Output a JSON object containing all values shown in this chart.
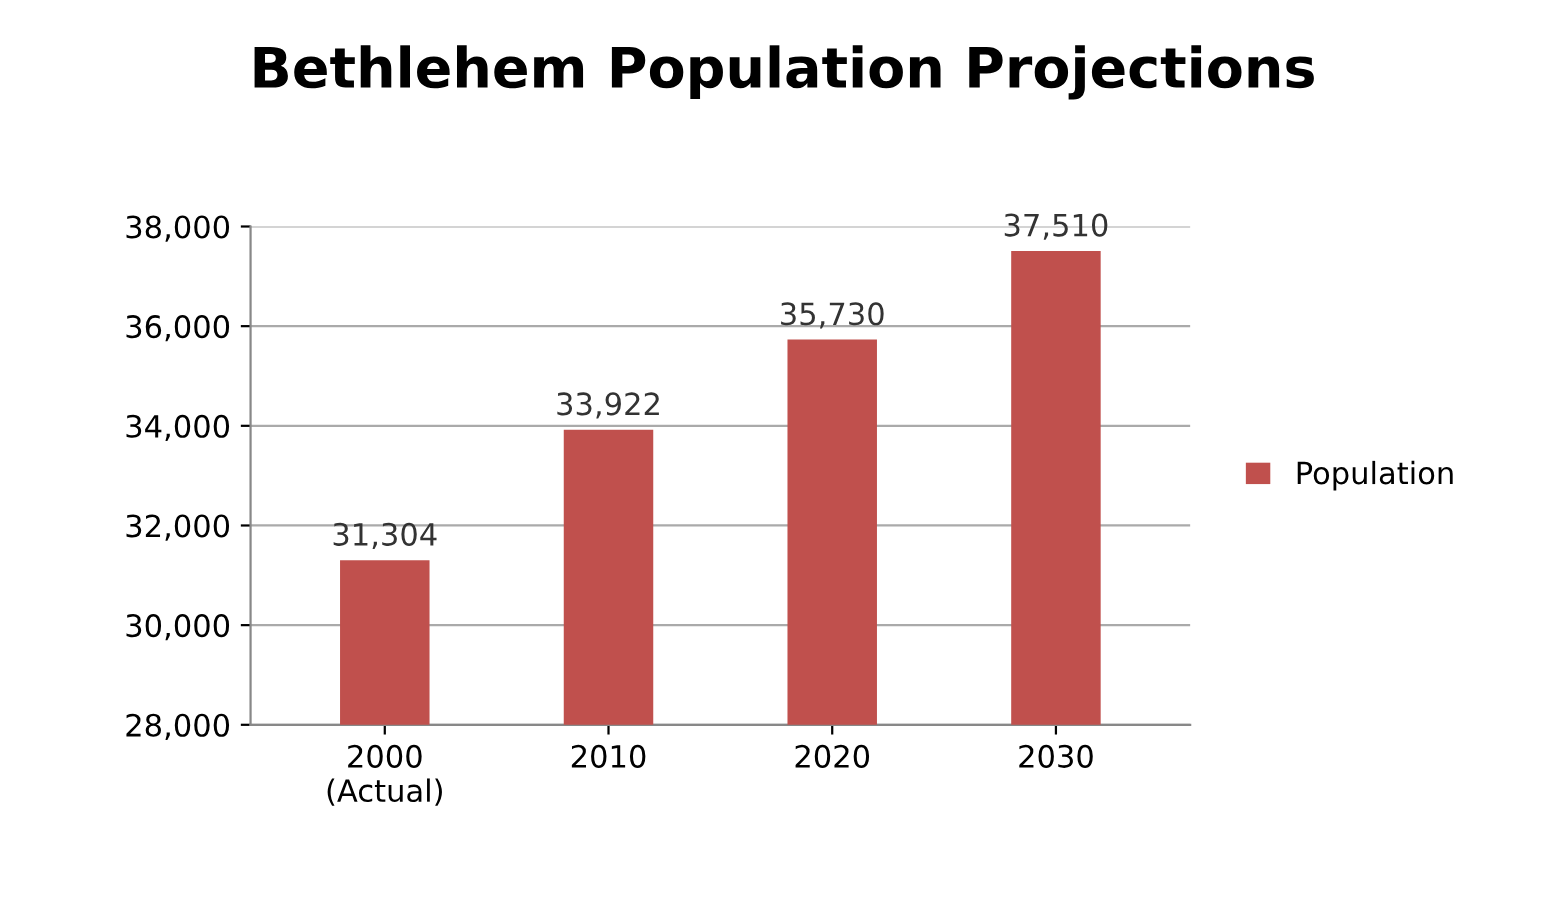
{
  "chart_data": {
    "type": "bar",
    "title": "Bethlehem Population Projections",
    "categories": [
      "2000\n(Actual)",
      "2010",
      "2020",
      "2030"
    ],
    "series": [
      {
        "name": "Population",
        "color": "#c0504d",
        "values": [
          31304,
          33922,
          35730,
          37510
        ],
        "value_labels": [
          "31,304",
          "33,922",
          "35,730",
          "37,510"
        ]
      }
    ],
    "ylim": [
      28000,
      38000
    ],
    "yticks": [
      {
        "value": 28000,
        "label": "28,000"
      },
      {
        "value": 30000,
        "label": "30,000"
      },
      {
        "value": 32000,
        "label": "32,000"
      },
      {
        "value": 34000,
        "label": "34,000"
      },
      {
        "value": 36000,
        "label": "36,000"
      },
      {
        "value": 38000,
        "label": "38,000"
      }
    ],
    "grid": "y",
    "legend": "right"
  }
}
